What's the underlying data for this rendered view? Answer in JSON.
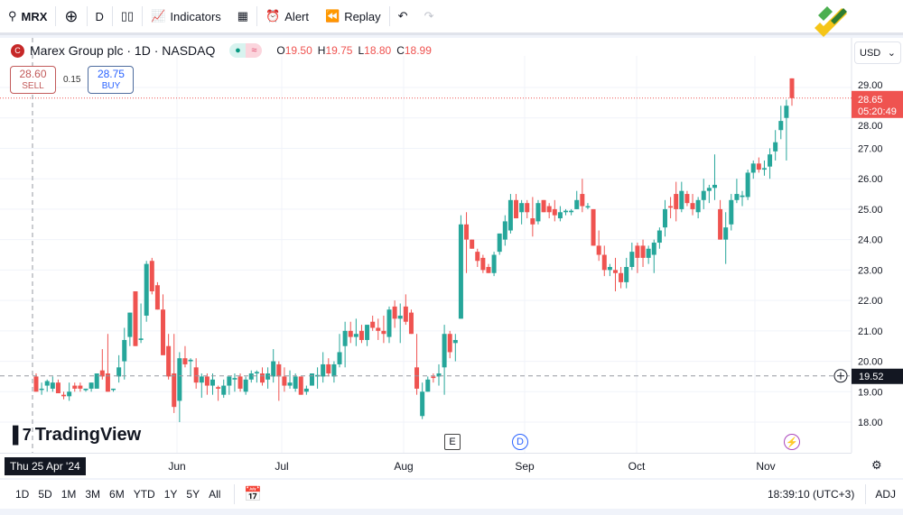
{
  "toolbar": {
    "symbol": "MRX",
    "interval": "D",
    "indicators": "Indicators",
    "alert": "Alert",
    "replay": "Replay"
  },
  "legend": {
    "title": "Marex Group plc · 1D · NASDAQ",
    "symbol_letter": "C",
    "o_label": "O",
    "o": "19.50",
    "h_label": "H",
    "h": "19.75",
    "l_label": "L",
    "l": "18.80",
    "c_label": "C",
    "c": "18.99"
  },
  "trade": {
    "sell_price": "28.60",
    "sell_label": "SELL",
    "spread": "0.15",
    "buy_price": "28.75",
    "buy_label": "BUY"
  },
  "currency": "USD",
  "price_axis": {
    "ticks": [
      "29.00",
      "28.00",
      "27.00",
      "26.00",
      "25.00",
      "24.00",
      "23.00",
      "22.00",
      "21.00",
      "20.00",
      "19.00",
      "18.00"
    ],
    "last_price": "28.65",
    "countdown": "05:20:49",
    "crosshair_price": "19.52"
  },
  "time_axis": {
    "crosshair_date": "Thu 25 Apr '24",
    "months": [
      "Jun",
      "Jul",
      "Aug",
      "Sep",
      "Oct",
      "Nov"
    ]
  },
  "events": {
    "earnings": "E",
    "dividend": "D"
  },
  "brand": "TradingView",
  "ranges": [
    "1D",
    "5D",
    "1M",
    "3M",
    "6M",
    "YTD",
    "1Y",
    "5Y",
    "All"
  ],
  "status": {
    "clock": "18:39:10 (UTC+3)",
    "adj": "ADJ"
  },
  "colors": {
    "up": "#26a69a",
    "down": "#ef5350",
    "accent": "#2962ff"
  },
  "chart_data": {
    "type": "candlestick",
    "ylim": [
      17.6,
      29.9
    ],
    "candles": [
      [
        19.5,
        19.6,
        19.0,
        19.0
      ],
      [
        19.1,
        19.3,
        18.9,
        19.1
      ],
      [
        19.2,
        19.4,
        19.0,
        19.35
      ],
      [
        19.1,
        19.5,
        19.0,
        19.3
      ],
      [
        19.3,
        19.4,
        18.95,
        18.95
      ],
      [
        18.9,
        19.0,
        18.75,
        18.85
      ],
      [
        18.85,
        19.3,
        18.7,
        19.0
      ],
      [
        19.2,
        19.3,
        19.0,
        19.1
      ],
      [
        19.2,
        19.3,
        19.0,
        19.1
      ],
      [
        19.05,
        19.1,
        19.0,
        19.1
      ],
      [
        19.1,
        19.3,
        19.0,
        19.3
      ],
      [
        19.1,
        19.6,
        19.1,
        19.6
      ],
      [
        19.7,
        20.4,
        19.4,
        19.5
      ],
      [
        19.6,
        20.9,
        19.0,
        19.0
      ],
      [
        19.1,
        19.1,
        19.0,
        19.1
      ],
      [
        19.5,
        20.2,
        19.3,
        19.8
      ],
      [
        20.0,
        21.1,
        19.4,
        20.7
      ],
      [
        20.8,
        21.6,
        20.5,
        21.6
      ],
      [
        22.3,
        22.3,
        20.5,
        20.5
      ],
      [
        20.7,
        21.9,
        20.6,
        20.75
      ],
      [
        21.5,
        23.3,
        21.3,
        23.2
      ],
      [
        23.3,
        23.4,
        22.2,
        22.3
      ],
      [
        22.5,
        22.6,
        21.7,
        21.7
      ],
      [
        21.7,
        22.2,
        20.2,
        20.2
      ],
      [
        20.5,
        20.9,
        19.4,
        19.5
      ],
      [
        19.6,
        20.9,
        18.3,
        18.5
      ],
      [
        18.7,
        20.3,
        18.0,
        20.1
      ],
      [
        20.1,
        20.5,
        19.8,
        19.9
      ],
      [
        20.0,
        20.1,
        19.5,
        20.05
      ],
      [
        19.8,
        20.1,
        19.1,
        19.3
      ],
      [
        19.3,
        19.6,
        18.8,
        19.5
      ],
      [
        19.5,
        19.6,
        18.9,
        19.2
      ],
      [
        19.2,
        19.6,
        18.9,
        19.4
      ],
      [
        19.15,
        19.2,
        18.7,
        19.1
      ],
      [
        18.9,
        19.4,
        18.8,
        19.2
      ],
      [
        19.2,
        19.5,
        18.9,
        19.5
      ],
      [
        19.4,
        19.6,
        19.0,
        19.45
      ],
      [
        19.5,
        19.6,
        19.0,
        19.1
      ],
      [
        19.0,
        19.5,
        18.9,
        19.4
      ],
      [
        19.4,
        19.7,
        19.3,
        19.6
      ],
      [
        19.6,
        19.7,
        19.3,
        19.65
      ],
      [
        19.6,
        19.8,
        19.2,
        19.3
      ],
      [
        19.4,
        19.8,
        19.1,
        19.6
      ],
      [
        19.5,
        20.4,
        19.3,
        20.0
      ],
      [
        19.9,
        20.0,
        18.7,
        19.5
      ],
      [
        19.5,
        19.8,
        19.0,
        19.2
      ],
      [
        19.2,
        19.7,
        19.1,
        19.3
      ],
      [
        19.1,
        19.6,
        19.0,
        19.5
      ],
      [
        19.5,
        19.5,
        18.9,
        18.9
      ],
      [
        19.0,
        19.2,
        18.9,
        19.1
      ],
      [
        19.2,
        19.6,
        19.2,
        19.6
      ],
      [
        19.5,
        19.8,
        19.1,
        19.55
      ],
      [
        19.5,
        20.3,
        19.3,
        19.9
      ],
      [
        19.9,
        20.1,
        19.5,
        19.6
      ],
      [
        19.5,
        20.0,
        19.3,
        19.9
      ],
      [
        19.9,
        20.9,
        19.8,
        20.3
      ],
      [
        20.5,
        21.3,
        19.8,
        21.0
      ],
      [
        21.0,
        21.3,
        20.6,
        20.8
      ],
      [
        20.8,
        21.4,
        20.5,
        20.9
      ],
      [
        21.0,
        21.2,
        20.6,
        20.7
      ],
      [
        20.7,
        21.2,
        20.5,
        21.2
      ],
      [
        21.3,
        21.5,
        21.0,
        21.1
      ],
      [
        21.1,
        21.4,
        20.7,
        21.0
      ],
      [
        21.0,
        21.5,
        20.6,
        20.9
      ],
      [
        20.8,
        21.8,
        20.6,
        21.7
      ],
      [
        21.8,
        22.0,
        21.1,
        21.4
      ],
      [
        21.4,
        21.9,
        20.6,
        21.5
      ],
      [
        21.8,
        22.2,
        21.2,
        21.3
      ],
      [
        21.6,
        21.7,
        20.9,
        20.9
      ],
      [
        19.8,
        20.9,
        18.9,
        19.1
      ],
      [
        18.2,
        19.3,
        18.1,
        19.0
      ],
      [
        19.0,
        19.5,
        19.0,
        19.4
      ],
      [
        19.5,
        19.6,
        19.3,
        19.45
      ],
      [
        19.5,
        19.9,
        19.2,
        19.6
      ],
      [
        19.8,
        21.2,
        18.9,
        20.9
      ],
      [
        20.9,
        21.0,
        20.1,
        20.3
      ],
      [
        20.6,
        20.9,
        20.0,
        20.7
      ],
      [
        21.4,
        24.8,
        21.4,
        24.5
      ],
      [
        24.5,
        24.9,
        22.9,
        24.0
      ],
      [
        24.0,
        24.0,
        23.7,
        23.7
      ],
      [
        23.6,
        23.7,
        23.1,
        23.3
      ],
      [
        23.4,
        23.5,
        22.9,
        23.0
      ],
      [
        23.1,
        23.2,
        22.9,
        22.9
      ],
      [
        22.9,
        23.6,
        22.8,
        23.5
      ],
      [
        23.6,
        24.2,
        23.5,
        24.2
      ],
      [
        24.0,
        24.8,
        23.8,
        24.6
      ],
      [
        24.3,
        25.5,
        24.2,
        25.3
      ],
      [
        25.3,
        25.5,
        24.7,
        24.7
      ],
      [
        24.9,
        25.3,
        24.5,
        25.2
      ],
      [
        25.2,
        25.3,
        24.7,
        24.9
      ],
      [
        24.7,
        25.4,
        24.1,
        24.5
      ],
      [
        24.6,
        25.3,
        24.5,
        25.2
      ],
      [
        25.3,
        25.3,
        24.9,
        24.9
      ],
      [
        25.1,
        25.2,
        24.7,
        24.9
      ],
      [
        25.0,
        25.3,
        24.6,
        24.8
      ],
      [
        24.7,
        25.1,
        24.6,
        24.9
      ],
      [
        24.9,
        25.0,
        24.8,
        24.95
      ],
      [
        24.9,
        25.0,
        24.8,
        24.95
      ],
      [
        25.0,
        25.6,
        25.0,
        25.3
      ],
      [
        25.5,
        26.0,
        24.9,
        25.1
      ],
      [
        25.1,
        25.2,
        25.0,
        25.1
      ],
      [
        25.0,
        25.0,
        23.8,
        23.8
      ],
      [
        23.8,
        24.3,
        23.3,
        23.5
      ],
      [
        23.5,
        23.8,
        22.8,
        23.0
      ],
      [
        23.0,
        23.2,
        22.8,
        23.1
      ],
      [
        23.0,
        23.4,
        22.3,
        22.9
      ],
      [
        22.9,
        23.1,
        22.4,
        22.6
      ],
      [
        22.6,
        23.4,
        22.4,
        23.1
      ],
      [
        23.1,
        23.9,
        23.0,
        23.6
      ],
      [
        23.8,
        23.9,
        22.9,
        23.4
      ],
      [
        23.8,
        24.0,
        23.1,
        23.4
      ],
      [
        23.4,
        23.8,
        23.2,
        23.7
      ],
      [
        23.5,
        24.0,
        22.9,
        23.9
      ],
      [
        23.9,
        24.4,
        23.7,
        24.3
      ],
      [
        24.4,
        25.3,
        24.1,
        25.0
      ],
      [
        25.1,
        25.4,
        24.7,
        25.05
      ],
      [
        25.5,
        25.9,
        24.6,
        25.0
      ],
      [
        25.0,
        25.9,
        24.9,
        25.6
      ],
      [
        25.5,
        25.6,
        25.1,
        25.2
      ],
      [
        25.2,
        25.5,
        24.8,
        25.0
      ],
      [
        24.9,
        25.4,
        24.7,
        25.3
      ],
      [
        25.3,
        26.0,
        25.0,
        25.6
      ],
      [
        25.6,
        25.8,
        25.2,
        25.7
      ],
      [
        25.7,
        26.8,
        25.3,
        25.8
      ],
      [
        25.0,
        25.3,
        24.0,
        24.0
      ],
      [
        24.0,
        24.9,
        23.2,
        24.4
      ],
      [
        24.5,
        25.5,
        24.3,
        25.3
      ],
      [
        25.3,
        26.0,
        25.2,
        25.5
      ],
      [
        25.4,
        25.6,
        25.1,
        25.45
      ],
      [
        25.4,
        26.3,
        25.3,
        26.2
      ],
      [
        26.2,
        26.6,
        26.0,
        26.5
      ],
      [
        26.5,
        26.7,
        26.2,
        26.3
      ],
      [
        26.3,
        26.6,
        26.1,
        26.35
      ],
      [
        26.4,
        27.0,
        26.0,
        26.8
      ],
      [
        26.9,
        27.6,
        26.6,
        27.2
      ],
      [
        27.6,
        28.4,
        27.3,
        27.9
      ],
      [
        28.0,
        28.6,
        26.6,
        28.4
      ],
      [
        29.3,
        29.3,
        28.4,
        28.65
      ]
    ]
  }
}
